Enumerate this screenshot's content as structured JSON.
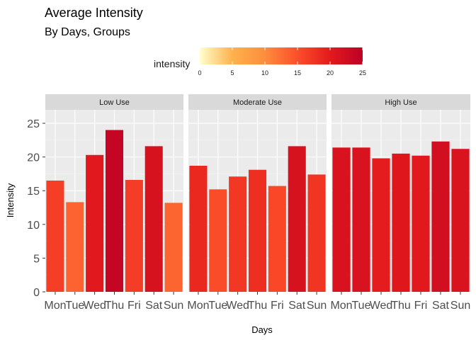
{
  "chart_data": {
    "type": "bar",
    "title": "Average Intensity",
    "subtitle": "By Days, Groups",
    "xlabel": "Days",
    "ylabel": "Intensity",
    "ylim": [
      0,
      27
    ],
    "yticks": [
      0,
      5,
      10,
      15,
      20,
      25
    ],
    "grid": true,
    "categories": [
      "Mon",
      "Tue",
      "Wed",
      "Thu",
      "Fri",
      "Sat",
      "Sun"
    ],
    "legend": {
      "title": "intensity",
      "position": "top",
      "scale": [
        0,
        25
      ],
      "ticks": [
        0,
        5,
        10,
        15,
        20,
        25
      ],
      "colors": [
        "#FFFFCC",
        "#FEB24C",
        "#FD8D3C",
        "#FC4E2A",
        "#E31A1C",
        "#BD0026"
      ]
    },
    "series": [
      {
        "name": "Low Use",
        "values": [
          16.5,
          13.3,
          20.3,
          24.0,
          16.6,
          21.6,
          13.2
        ]
      },
      {
        "name": "Moderate Use",
        "values": [
          18.7,
          15.2,
          17.1,
          18.1,
          15.7,
          21.6,
          17.4
        ]
      },
      {
        "name": "High Use",
        "values": [
          21.4,
          21.4,
          19.8,
          20.5,
          20.2,
          22.3,
          21.2
        ]
      }
    ]
  }
}
